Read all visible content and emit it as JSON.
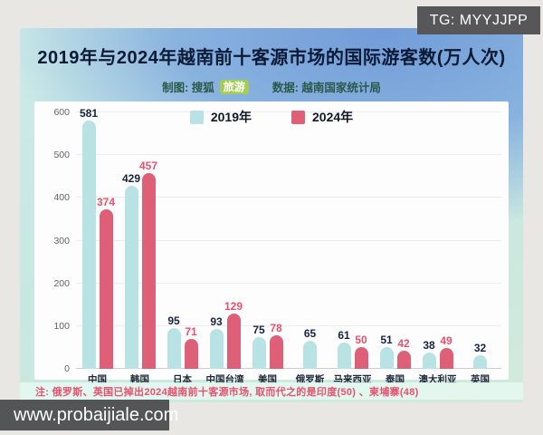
{
  "watermarks": {
    "tg": "TG: MYYJJPP",
    "site": "www.probaijiale.com"
  },
  "header": {
    "title": "2019年与2024年越南前十客源市场的国际游客数(万人次)",
    "credit_label": "制图: 搜狐",
    "credit_badge": "旅游",
    "source_label": "数据: 越南国家统计局"
  },
  "note": "注: 俄罗斯、英国已掉出2024越南前十客源市场, 取而代之的是印度(50) 、柬埔寨(48)",
  "colors": {
    "bar_2019": "#b9e2e4",
    "bar_2024": "#de5f78",
    "value_label_2019": "#16233f",
    "value_label_2024": "#e8516e",
    "note_text": "#e8516e",
    "badge_green": "#a7cc53"
  },
  "chart_data": {
    "type": "bar",
    "title": "2019年与2024年越南前十客源市场的国际游客数(万人次)",
    "categories": [
      "中国",
      "韩国",
      "日本",
      "中国台湾",
      "美国",
      "俄罗斯",
      "马来西亚",
      "泰国",
      "澳大利亚",
      "英国"
    ],
    "series": [
      {
        "name": "2019年",
        "color": "#b9e2e4",
        "label_color": "#16233f",
        "values": [
          581,
          429,
          95,
          93,
          75,
          65,
          61,
          51,
          38,
          32
        ]
      },
      {
        "name": "2024年",
        "color": "#de5f78",
        "label_color": "#e8516e",
        "values": [
          374,
          457,
          71,
          129,
          78,
          null,
          50,
          42,
          49,
          null
        ]
      }
    ],
    "xlabel": "",
    "ylabel": "",
    "ylim": [
      0,
      600
    ],
    "yticks": [
      0,
      100,
      200,
      300,
      400,
      500,
      600
    ],
    "grid": true,
    "legend_position": "top-center",
    "unit": "万人次"
  }
}
